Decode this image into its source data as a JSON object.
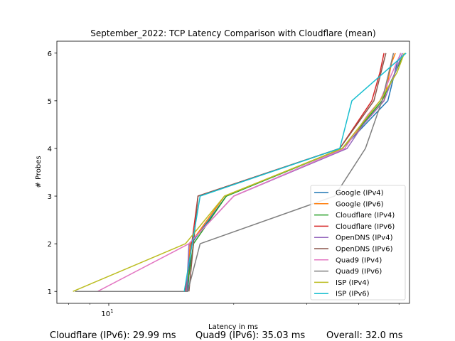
{
  "chart_data": {
    "type": "line",
    "title": "September_2022: TCP Latency Comparison with Cloudflare (mean)",
    "xlabel": "Latency in ms",
    "ylabel": "# Probes",
    "xscale": "log",
    "xlim": [
      7.5,
      53
    ],
    "ylim": [
      0.75,
      6.25
    ],
    "x_tick_labels": [
      {
        "value": 10,
        "base": "10",
        "exp": "1"
      }
    ],
    "y_ticks": [
      1,
      2,
      3,
      4,
      5,
      6
    ],
    "legend_position": "lower-right",
    "grid": false,
    "series": [
      {
        "name": "Google (IPv4)",
        "color": "#1f77b4",
        "x": [
          15.5,
          15.8,
          19.2,
          36.5,
          47.0,
          49.5,
          50.5
        ],
        "y": [
          1,
          2,
          3,
          4,
          5,
          5.8,
          6
        ]
      },
      {
        "name": "Google (IPv6)",
        "color": "#ff7f0e",
        "x": [
          15.4,
          15.7,
          19.0,
          36.5,
          46.0,
          48.0,
          49.0
        ],
        "y": [
          1,
          2,
          3,
          4,
          5,
          5.8,
          6
        ]
      },
      {
        "name": "Cloudflare (IPv4)",
        "color": "#2ca02c",
        "x": [
          15.4,
          16.0,
          19.2,
          36.5,
          45.5,
          49.0,
          51.5
        ],
        "y": [
          1,
          2,
          3,
          4,
          5,
          5.6,
          6
        ]
      },
      {
        "name": "Cloudflare (IPv6)",
        "color": "#d62728",
        "x": [
          15.3,
          16.4,
          36.0,
          43.0,
          45.0,
          46.0
        ],
        "y": [
          1,
          3,
          4,
          5,
          5.6,
          6
        ]
      },
      {
        "name": "OpenDNS (IPv4)",
        "color": "#9467bd",
        "x": [
          15.4,
          15.6,
          20.0,
          37.5,
          41.0,
          46.0,
          51.0
        ],
        "y": [
          1,
          2,
          3,
          4,
          4.5,
          5.0,
          6
        ]
      },
      {
        "name": "OpenDNS (IPv6)",
        "color": "#8c564b",
        "x": [
          15.6,
          16.4,
          36.0,
          43.5,
          46.5
        ],
        "y": [
          1,
          3,
          4,
          5,
          6
        ]
      },
      {
        "name": "Quad9 (IPv4)",
        "color": "#e377c2",
        "x": [
          9.4,
          15.6,
          20.0,
          37.0,
          42.0,
          45.0,
          50.5
        ],
        "y": [
          1,
          2,
          3,
          4,
          4.7,
          5,
          6
        ]
      },
      {
        "name": "Quad9 (IPv6)",
        "color": "#7f7f7f",
        "x": [
          8.3,
          15.5,
          16.6,
          35.0,
          41.5,
          45.5,
          48.5
        ],
        "y": [
          1,
          1,
          2,
          3,
          4,
          5,
          6
        ]
      },
      {
        "name": "ISP (IPv4)",
        "color": "#bcbd22",
        "x": [
          8.2,
          15.3,
          19.0,
          36.5,
          45.0,
          49.5,
          51.5
        ],
        "y": [
          1,
          2,
          3,
          4,
          5,
          5.6,
          6
        ]
      },
      {
        "name": "ISP (IPv6)",
        "color": "#17becf",
        "x": [
          15.2,
          16.6,
          36.0,
          38.5,
          52.0
        ],
        "y": [
          1,
          3,
          4,
          5,
          6
        ]
      }
    ]
  },
  "footer": {
    "cloudflare_ipv6": "Cloudflare (IPv6): 29.99 ms",
    "quad9_ipv6": "Quad9 (IPv6): 35.03 ms",
    "overall": "Overall: 32.0 ms"
  }
}
